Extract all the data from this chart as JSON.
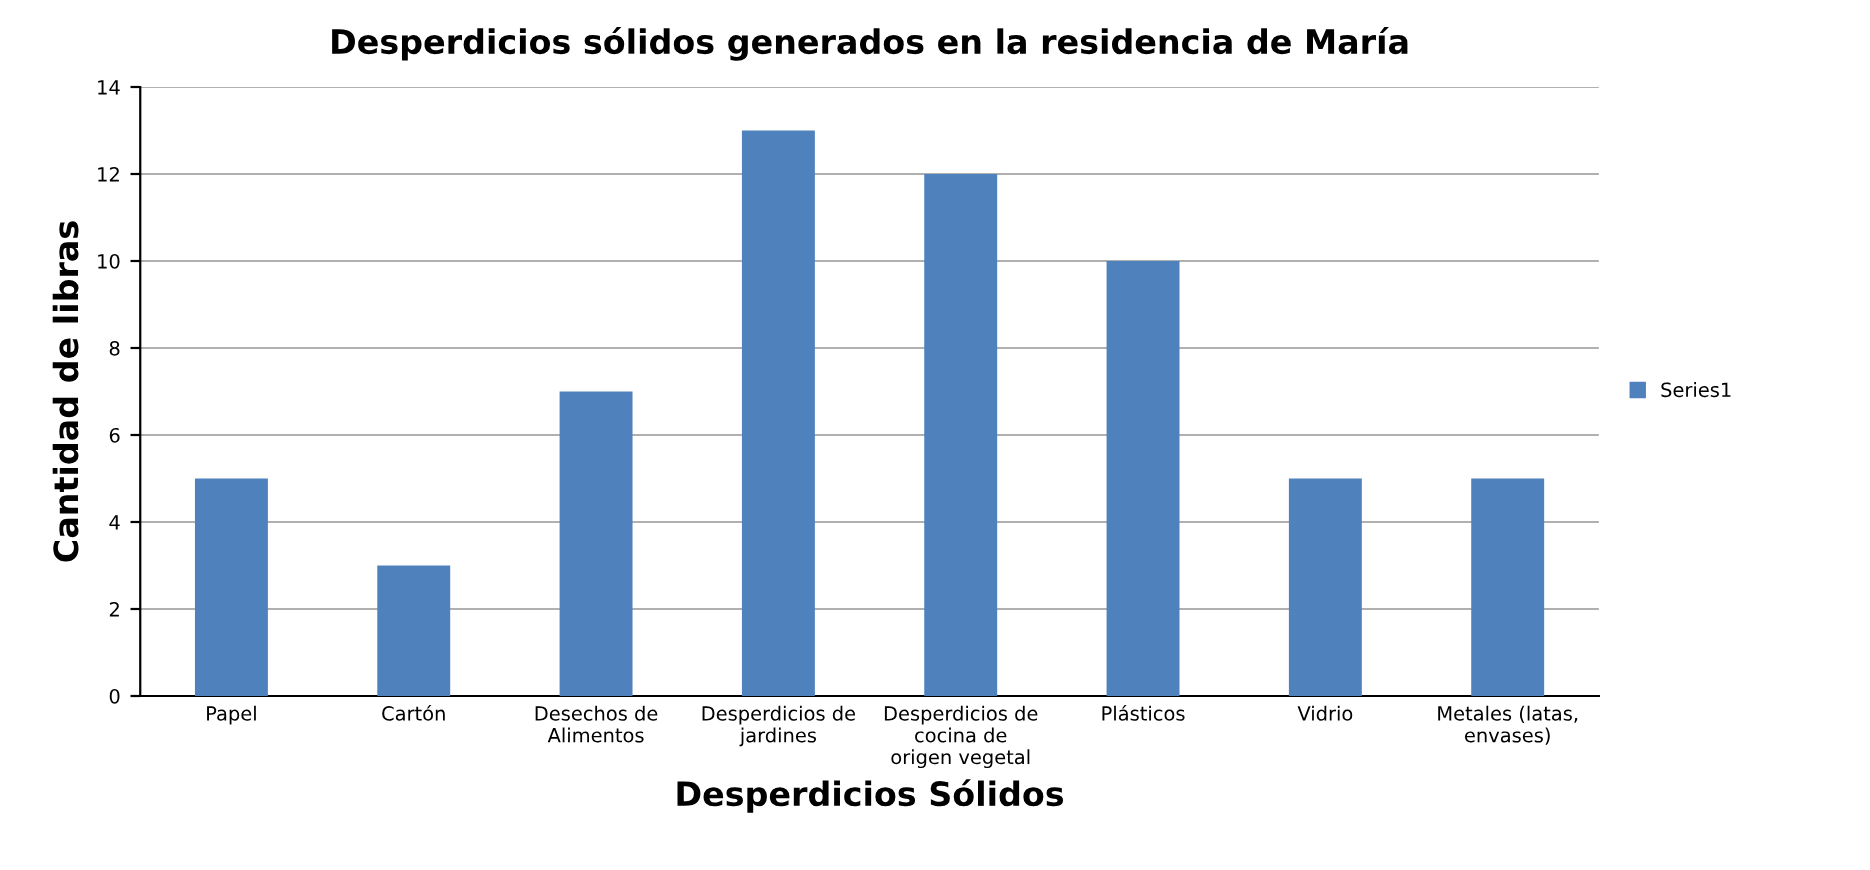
{
  "chart_data": {
    "type": "bar",
    "title": "Desperdicios sólidos generados en la residencia de María",
    "xlabel": "Desperdicios Sólidos",
    "ylabel": "Cantidad de libras",
    "categories": [
      "Papel",
      "Cartón",
      "Desechos de\nAlimentos",
      "Desperdicios de\njardines",
      "Desperdicios de\ncocina de\norigen vegetal",
      "Plásticos",
      "Vidrio",
      "Metales (latas,\nenvases)"
    ],
    "series": [
      {
        "name": "Series1",
        "color": "#4f81bd",
        "values": [
          5,
          3,
          7,
          13,
          12,
          10,
          5,
          5
        ]
      }
    ],
    "ylim": [
      0,
      14
    ],
    "yticks": [
      0,
      2,
      4,
      6,
      8,
      10,
      12,
      14
    ],
    "grid": "y",
    "legend": "right"
  }
}
